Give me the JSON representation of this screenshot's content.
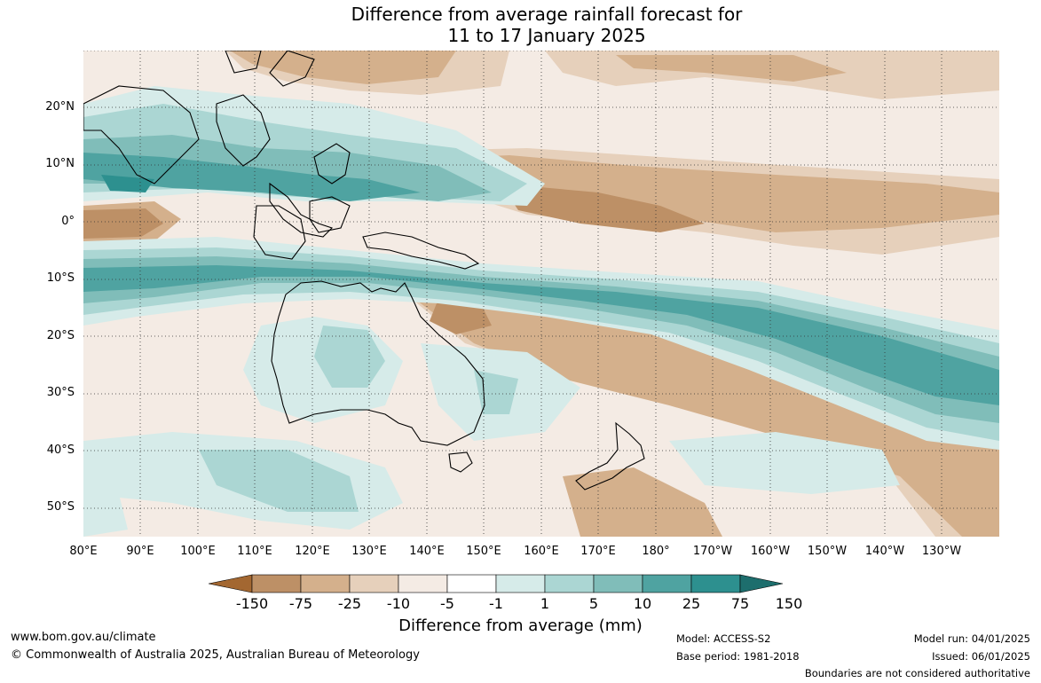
{
  "title": {
    "line1": "Difference from average rainfall forecast for",
    "line2": "11 to 17 January 2025"
  },
  "map": {
    "lat_labels": [
      "20°N",
      "10°N",
      "0°",
      "10°S",
      "20°S",
      "30°S",
      "40°S",
      "50°S"
    ],
    "lon_labels": [
      "80°E",
      "90°E",
      "100°E",
      "110°E",
      "120°E",
      "130°E",
      "140°E",
      "150°E",
      "160°E",
      "170°E",
      "180°",
      "170°W",
      "160°W",
      "150°W",
      "140°W",
      "130°W"
    ],
    "lon_range": [
      "80°E",
      "120°W"
    ],
    "lat_range": [
      "30°N",
      "55°S"
    ],
    "gridlines": true
  },
  "legend": {
    "title": "Difference from average (mm)",
    "ticks": [
      "-150",
      "-75",
      "-25",
      "-10",
      "-5",
      "-1",
      "1",
      "5",
      "10",
      "25",
      "75",
      "150"
    ],
    "colors": [
      "#a36731",
      "#bd9066",
      "#d4b08c",
      "#e6d0bb",
      "#f4ebe4",
      "#ffffff",
      "#d6ebe9",
      "#abd6d3",
      "#80bdb9",
      "#4fa3a1",
      "#2d908f",
      "#1d6e6d"
    ],
    "extend": "both"
  },
  "footer": {
    "website": "www.bom.gov.au/climate",
    "copyright": "© Commonwealth of Australia 2025, Australian Bureau of Meteorology",
    "model": "Model: ACCESS-S2",
    "base_period": "Base period: 1981-2018",
    "model_run": "Model run: 04/01/2025",
    "issued": "Issued: 06/01/2025",
    "disclaimer": "Boundaries are not considered authoritative"
  }
}
